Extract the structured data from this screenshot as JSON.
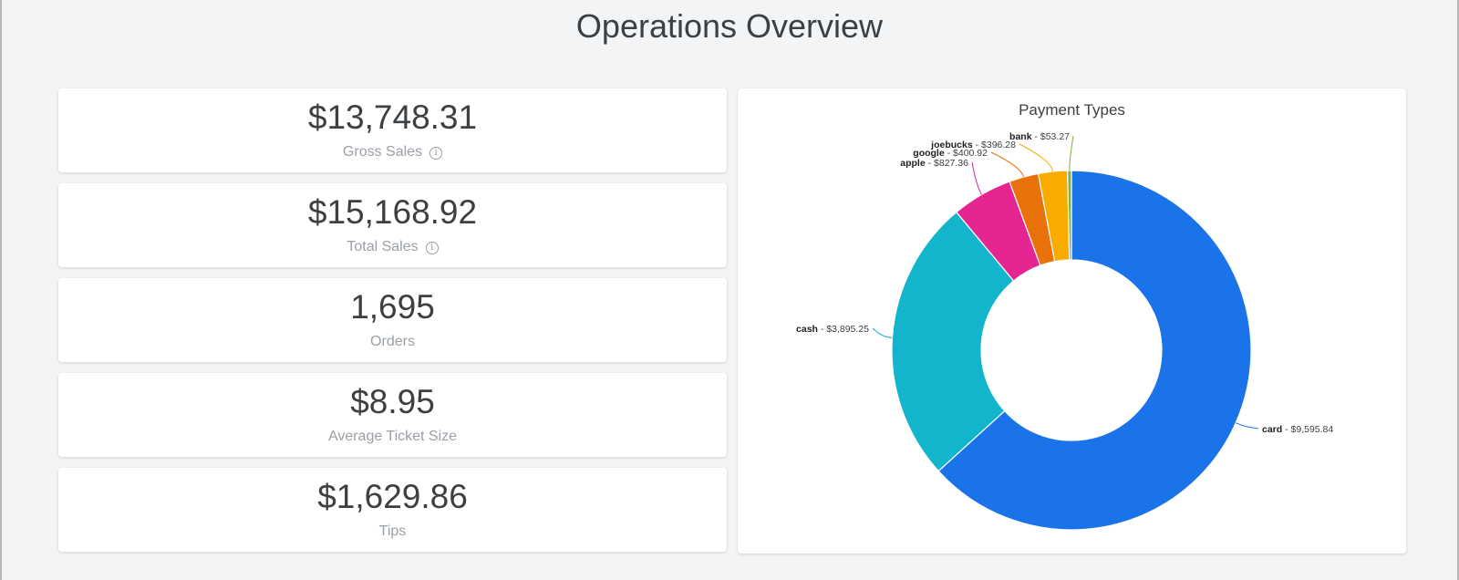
{
  "page": {
    "title": "Operations Overview"
  },
  "kpis": [
    {
      "value": "$13,748.31",
      "label": "Gross Sales",
      "info": "i"
    },
    {
      "value": "$15,168.92",
      "label": "Total Sales",
      "info": "i"
    },
    {
      "value": "1,695",
      "label": "Orders"
    },
    {
      "value": "$8.95",
      "label": "Average Ticket Size"
    },
    {
      "value": "$1,629.86",
      "label": "Tips"
    }
  ],
  "chart_data": {
    "type": "pie",
    "donut": true,
    "title": "Payment Types",
    "categories": [
      "card",
      "cash",
      "apple",
      "google",
      "joebucks",
      "bank"
    ],
    "values": [
      9595.84,
      3895.25,
      827.36,
      400.92,
      396.28,
      53.27
    ],
    "value_labels": [
      "$9,595.84",
      "$3,895.25",
      "$827.36",
      "$400.92",
      "$396.28",
      "$53.27"
    ],
    "colors": [
      "#1a73e8",
      "#12b5cb",
      "#e52592",
      "#e8710a",
      "#f9ab00",
      "#7cb342"
    ],
    "legend": "none"
  }
}
